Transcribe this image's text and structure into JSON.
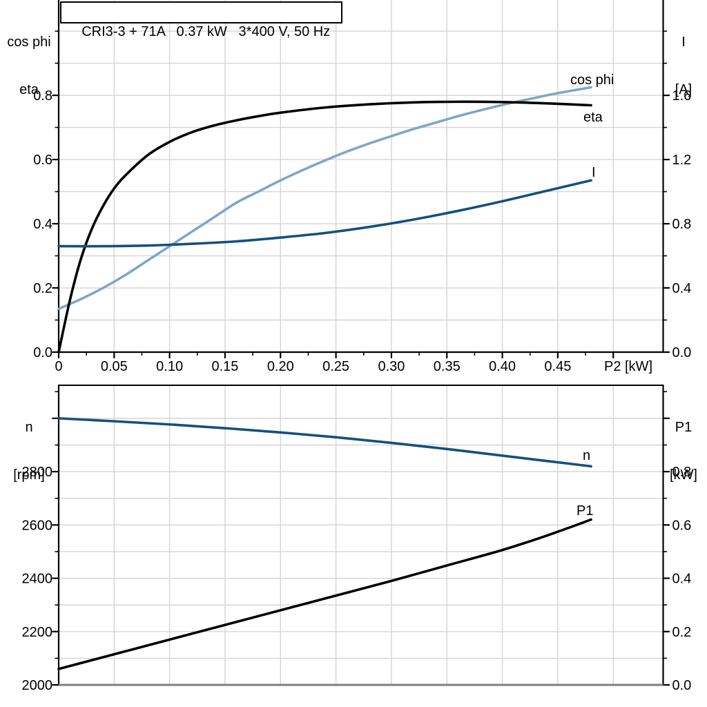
{
  "header": {
    "title_box": "CRI3-3 + 71A   0.37 kW   3*400 V, 50 Hz"
  },
  "colors": {
    "black": "#000000",
    "dark_blue": "#14507e",
    "light_blue": "#7ea6c8",
    "grid": "#d4d4d4",
    "frame_gray": "#7f7f7f"
  },
  "top_chart": {
    "left_line1": "cos phi",
    "left_line2": "eta",
    "right_line1": "I",
    "right_line2": "[A]"
  },
  "bottom_chart": {
    "left_line1": "n",
    "left_line2": "[rpm]",
    "right_line1": "P1",
    "right_line2": "[kW]"
  },
  "chart_data": [
    {
      "type": "line",
      "title": "CRI3-3 + 71A   0.37 kW   3*400 V, 50 Hz",
      "xlabel": "P2 [kW]",
      "ylabel_left": "cos phi / eta",
      "ylabel_right": "I [A]",
      "xlim": [
        0,
        0.545
      ],
      "ylim_left": [
        0,
        1.097
      ],
      "ylim_right": [
        0,
        2.194
      ],
      "grid": true,
      "legend_position": "inline-labels",
      "x_major_ticks": [
        0,
        0.05,
        0.1,
        0.15,
        0.2,
        0.25,
        0.3,
        0.35,
        0.4,
        0.45,
        0.5
      ],
      "x_tick_labels": [
        "0",
        "0.05",
        "0.10",
        "0.15",
        "0.20",
        "0.25",
        "0.30",
        "0.35",
        "0.40",
        "0.45",
        ""
      ],
      "x_minor_step": 0.025,
      "y_left_major": [
        0,
        0.2,
        0.4,
        0.6,
        0.8
      ],
      "y_left_labels": [
        "0.0",
        "0.2",
        "0.4",
        "0.6",
        "0.8"
      ],
      "y_left_minor_step": 0.1,
      "y_right_major": [
        0,
        0.4,
        0.8,
        1.2,
        1.6
      ],
      "y_right_labels": [
        "0.0",
        "0.4",
        "0.8",
        "1.2",
        "1.6"
      ],
      "y_right_minor_step": 0.2,
      "series": [
        {
          "name": "cos phi",
          "axis": "left",
          "color_key": "light_blue",
          "x": [
            0,
            0.02,
            0.04,
            0.06,
            0.08,
            0.1,
            0.12,
            0.14,
            0.16,
            0.18,
            0.2,
            0.22,
            0.24,
            0.26,
            0.28,
            0.3,
            0.32,
            0.34,
            0.36,
            0.38,
            0.4,
            0.42,
            0.44,
            0.46,
            0.48
          ],
          "y": [
            0.135,
            0.165,
            0.2,
            0.24,
            0.285,
            0.33,
            0.375,
            0.42,
            0.465,
            0.5,
            0.535,
            0.567,
            0.597,
            0.625,
            0.65,
            0.673,
            0.695,
            0.715,
            0.735,
            0.753,
            0.77,
            0.785,
            0.8,
            0.813,
            0.825
          ]
        },
        {
          "name": "eta",
          "axis": "left",
          "color_key": "black",
          "x": [
            0,
            0.01,
            0.02,
            0.03,
            0.04,
            0.05,
            0.06,
            0.08,
            0.1,
            0.12,
            0.14,
            0.16,
            0.18,
            0.2,
            0.24,
            0.28,
            0.32,
            0.36,
            0.4,
            0.44,
            0.48
          ],
          "y": [
            0,
            0.16,
            0.29,
            0.385,
            0.455,
            0.51,
            0.55,
            0.613,
            0.655,
            0.685,
            0.706,
            0.722,
            0.735,
            0.746,
            0.762,
            0.772,
            0.778,
            0.78,
            0.779,
            0.775,
            0.769
          ]
        },
        {
          "name": "I",
          "axis": "right",
          "color_key": "dark_blue",
          "x": [
            0,
            0.04,
            0.08,
            0.12,
            0.16,
            0.2,
            0.24,
            0.28,
            0.32,
            0.36,
            0.4,
            0.44,
            0.48
          ],
          "y": [
            0.66,
            0.66,
            0.664,
            0.675,
            0.69,
            0.714,
            0.742,
            0.78,
            0.826,
            0.88,
            0.94,
            1.005,
            1.07
          ]
        }
      ]
    },
    {
      "type": "line",
      "title": "",
      "xlabel": "",
      "ylabel_left": "n [rpm]",
      "ylabel_right": "P1 [kW]",
      "xlim": [
        0,
        0.545
      ],
      "ylim_left": [
        2000,
        3124
      ],
      "ylim_right": [
        0,
        1.124
      ],
      "grid": true,
      "legend_position": "inline-labels",
      "x_major_ticks": [],
      "x_tick_labels": [],
      "x_minor_step": 0,
      "y_left_major": [
        2000,
        2200,
        2400,
        2600,
        2800,
        3000
      ],
      "y_left_labels": [
        "2000",
        "2200",
        "2400",
        "2600",
        "2800",
        ""
      ],
      "y_left_minor_step": 100,
      "y_right_major": [
        0,
        0.2,
        0.4,
        0.6,
        0.8,
        1.0
      ],
      "y_right_labels": [
        "0.0",
        "0.2",
        "0.4",
        "0.6",
        "0.8",
        ""
      ],
      "y_right_minor_step": 0.1,
      "series": [
        {
          "name": "n",
          "axis": "left",
          "color_key": "dark_blue",
          "x": [
            0,
            0.05,
            0.1,
            0.15,
            0.2,
            0.25,
            0.3,
            0.35,
            0.4,
            0.44,
            0.48
          ],
          "y": [
            3000,
            2989,
            2977,
            2963,
            2947,
            2929,
            2908,
            2885,
            2860,
            2840,
            2820
          ]
        },
        {
          "name": "P1",
          "axis": "left-secondary",
          "color_key": "black",
          "x": [
            0,
            0.05,
            0.1,
            0.15,
            0.2,
            0.25,
            0.3,
            0.35,
            0.4,
            0.44,
            0.48
          ],
          "y": [
            0.06,
            0.115,
            0.17,
            0.225,
            0.28,
            0.335,
            0.39,
            0.448,
            0.506,
            0.56,
            0.62
          ]
        }
      ]
    }
  ]
}
